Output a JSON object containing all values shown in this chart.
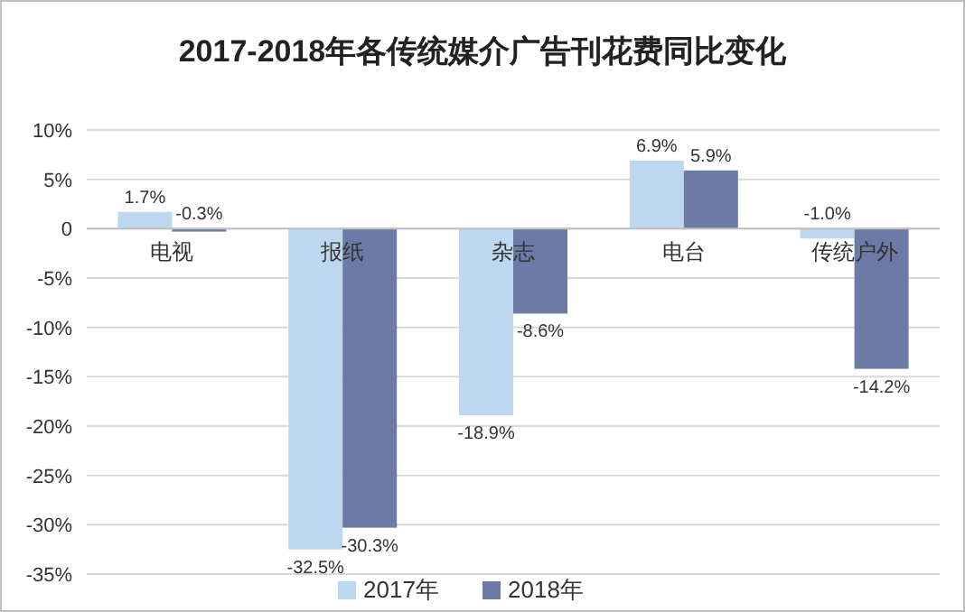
{
  "chart_data": {
    "type": "bar",
    "title": "2017-2018年各传统媒介广告刊花费同比变化",
    "categories": [
      "电视",
      "报纸",
      "杂志",
      "电台",
      "传统户外"
    ],
    "series": [
      {
        "name": "2017年",
        "color": "#bdd7ee",
        "values": [
          1.7,
          -32.5,
          -18.9,
          6.9,
          -1.0
        ],
        "value_labels": [
          "1.7%",
          "-32.5%",
          "-18.9%",
          "6.9%",
          "-1.0%"
        ]
      },
      {
        "name": "2018年",
        "color": "#6b7ba5",
        "values": [
          -0.3,
          -30.3,
          -8.6,
          5.9,
          -14.2
        ],
        "value_labels": [
          "-0.3%",
          "-30.3%",
          "-8.6%",
          "5.9%",
          "-14.2%"
        ]
      }
    ],
    "ylim": [
      -35,
      10
    ],
    "yticks": [
      {
        "value": 10,
        "label": "10%"
      },
      {
        "value": 5,
        "label": "5%"
      },
      0,
      {
        "value": -5,
        "label": "-5%"
      },
      {
        "value": -10,
        "label": "-10%"
      },
      {
        "value": -15,
        "label": "-15%"
      },
      {
        "value": -20,
        "label": "-20%"
      },
      {
        "value": -25,
        "label": "-25%"
      },
      {
        "value": -30,
        "label": "-30%"
      },
      {
        "value": -35,
        "label": "-35%"
      }
    ],
    "grid": "y",
    "legend": "bottom"
  }
}
